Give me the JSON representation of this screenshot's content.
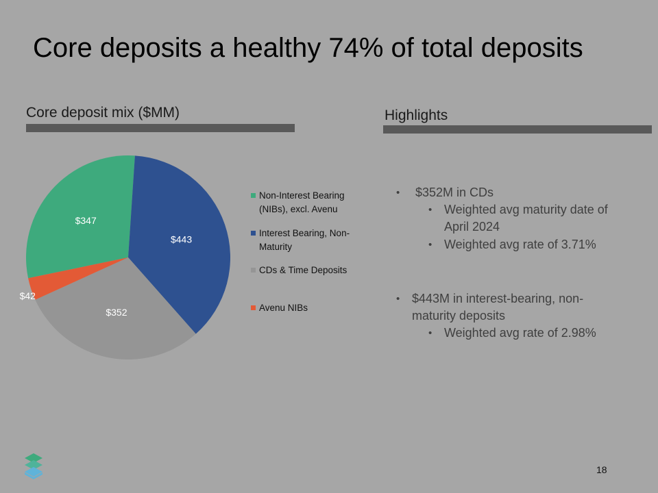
{
  "slide": {
    "title": "Core deposits a healthy 74% of total deposits",
    "left_heading": "Core deposit mix ($MM)",
    "right_heading": "Highlights",
    "page_number": "18"
  },
  "highlights": [
    {
      "text": "$352M in CDs",
      "level": 1
    },
    {
      "text": "Weighted avg maturity date of",
      "level": 2
    },
    {
      "text": "April 2024",
      "level": 2,
      "continuation": true
    },
    {
      "text": "Weighted avg rate of 3.71%",
      "level": 2
    },
    {
      "text": "$443M in interest-bearing, non-",
      "level": 1
    },
    {
      "text": "maturity deposits",
      "level": 1,
      "continuation": true
    },
    {
      "text": "Weighted avg rate of 2.98%",
      "level": 2
    }
  ],
  "chart_data": {
    "type": "pie",
    "title": "Core deposit mix ($MM)",
    "slices": [
      {
        "label": "Non-Interest Bearing (NIBs), excl. Avenu",
        "value": 347,
        "display": "$347",
        "color": "#3eaa7d"
      },
      {
        "label": "Interest Bearing, Non-Maturity",
        "value": 443,
        "display": "$443",
        "color": "#2e5190"
      },
      {
        "label": "CDs & Time Deposits",
        "value": 352,
        "display": "$352",
        "color": "#959595"
      },
      {
        "label": "Avenu NIBs",
        "value": 42,
        "display": "$42",
        "color": "#e35a36"
      }
    ],
    "legend": [
      {
        "label_line1": "Non-Interest Bearing",
        "label_line2": "(NIBs), excl. Avenu",
        "color": "#3eaa7d"
      },
      {
        "label_line1": "Interest Bearing, Non-",
        "label_line2": "Maturity",
        "color": "#2e5190"
      },
      {
        "label_line1": "CDs & Time Deposits",
        "label_line2": "",
        "color": "#959595"
      },
      {
        "label_line1": "Avenu NIBs",
        "label_line2": "",
        "color": "#e35a36"
      }
    ],
    "legend_position": "right"
  },
  "logo": {
    "icon": "stacked-layers-logo",
    "colors": [
      "#3eaa7d",
      "#5fb3d9"
    ]
  }
}
